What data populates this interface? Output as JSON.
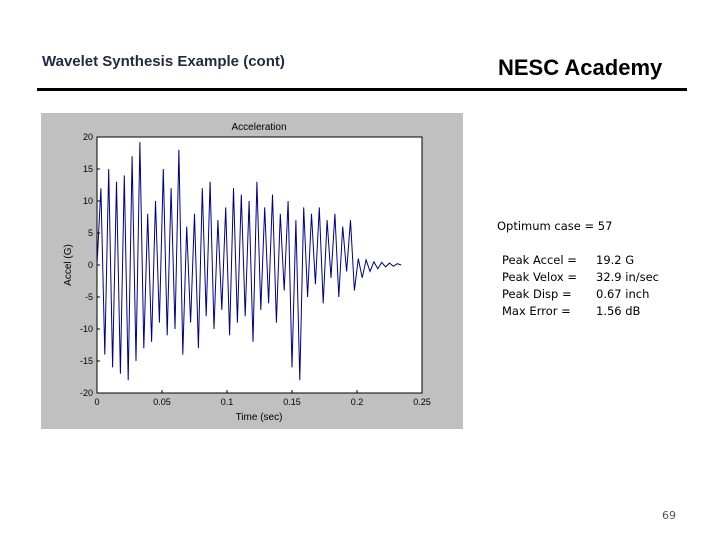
{
  "slide": {
    "title": "Wavelet Synthesis Example (cont)",
    "brand": "NESC Academy",
    "page_number": "69"
  },
  "results": {
    "optimum": "Optimum case = 57",
    "rows": [
      {
        "label": "Peak Accel =",
        "value": "19.2 G"
      },
      {
        "label": "Peak Velox =",
        "value": "32.9 in/sec"
      },
      {
        "label": "Peak Disp  =",
        "value": "0.67 inch"
      },
      {
        "label": "Max Error  =",
        "value": "1.56 dB"
      }
    ]
  },
  "chart_data": {
    "type": "line",
    "title": "Acceleration",
    "xlabel": "Time (sec)",
    "ylabel": "Accel (G)",
    "xlim": [
      0,
      0.25
    ],
    "ylim": [
      -20,
      20
    ],
    "xticks": [
      "0",
      "0.05",
      "0.1",
      "0.15",
      "0.2",
      "0.25"
    ],
    "yticks": [
      "20",
      "15",
      "10",
      "5",
      "0",
      "-5",
      "-10",
      "-15",
      "-20"
    ],
    "grid": false,
    "line_color": "#00008b",
    "series": [
      {
        "name": "",
        "x": [
          0,
          0.003,
          0.006,
          0.009,
          0.012,
          0.015,
          0.018,
          0.021,
          0.024,
          0.027,
          0.03,
          0.033,
          0.036,
          0.039,
          0.042,
          0.045,
          0.048,
          0.051,
          0.054,
          0.057,
          0.06,
          0.063,
          0.066,
          0.069,
          0.072,
          0.075,
          0.078,
          0.081,
          0.084,
          0.087,
          0.09,
          0.093,
          0.096,
          0.099,
          0.102,
          0.105,
          0.108,
          0.111,
          0.114,
          0.117,
          0.12,
          0.123,
          0.126,
          0.129,
          0.132,
          0.135,
          0.138,
          0.141,
          0.144,
          0.147,
          0.15,
          0.153,
          0.156,
          0.159,
          0.162,
          0.165,
          0.168,
          0.171,
          0.174,
          0.177,
          0.18,
          0.183,
          0.186,
          0.189,
          0.192,
          0.195,
          0.198,
          0.201,
          0.204,
          0.207,
          0.21,
          0.213,
          0.216,
          0.219,
          0.222,
          0.225,
          0.228,
          0.231,
          0.234
        ],
        "y": [
          0,
          12,
          -14,
          15,
          -16,
          13,
          -17,
          14,
          -18,
          17,
          -15,
          19.2,
          -13,
          8,
          -12,
          10,
          -9,
          15,
          -11,
          12,
          -10,
          18,
          -14,
          6,
          -9,
          8,
          -13,
          12,
          -8,
          13,
          -10,
          7,
          -7,
          9,
          -11,
          12,
          -9,
          11,
          -8,
          10,
          -12,
          13,
          -7,
          9,
          -6,
          11,
          -9,
          8,
          -4,
          10,
          -16,
          7,
          -18,
          9,
          -5,
          8,
          -3,
          9,
          -6,
          7,
          -2,
          8,
          -5,
          6,
          -1,
          7,
          -4,
          1,
          -2,
          0.8,
          -1,
          0.5,
          -0.6,
          0.4,
          -0.3,
          0.3,
          -0.2,
          0.2,
          0
        ]
      }
    ]
  }
}
